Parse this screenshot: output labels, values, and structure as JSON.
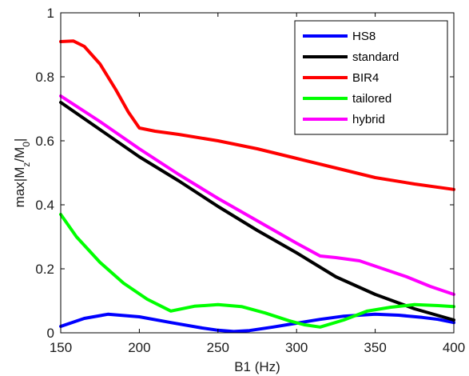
{
  "chart_data": {
    "type": "line",
    "xlabel": "B1 (Hz)",
    "ylabel": {
      "prefix": "max|M",
      "sub1": "z",
      "mid": "/M",
      "sub2": "0",
      "suffix": "|"
    },
    "xlim": [
      150,
      400
    ],
    "ylim": [
      0,
      1
    ],
    "xticks": [
      150,
      200,
      250,
      300,
      350,
      400
    ],
    "yticks": [
      0,
      0.2,
      0.4,
      0.6,
      0.8,
      1
    ],
    "ytick_labels": [
      "0",
      "0.2",
      "0.4",
      "0.6",
      "0.8",
      "1"
    ],
    "grid": false,
    "legend_position": "top-right",
    "series": [
      {
        "name": "HS8",
        "color": "#0000ff",
        "x": [
          150,
          165,
          180,
          200,
          220,
          240,
          250,
          260,
          270,
          285,
          300,
          315,
          330,
          350,
          365,
          380,
          390,
          400
        ],
        "y": [
          0.02,
          0.045,
          0.058,
          0.05,
          0.032,
          0.015,
          0.008,
          0.004,
          0.007,
          0.018,
          0.03,
          0.042,
          0.052,
          0.058,
          0.055,
          0.048,
          0.042,
          0.032
        ]
      },
      {
        "name": "standard",
        "color": "#000000",
        "x": [
          150,
          175,
          200,
          225,
          250,
          275,
          300,
          325,
          350,
          375,
          400
        ],
        "y": [
          0.72,
          0.635,
          0.55,
          0.475,
          0.395,
          0.32,
          0.25,
          0.175,
          0.12,
          0.075,
          0.04
        ]
      },
      {
        "name": "BIR4",
        "color": "#ff0000",
        "x": [
          150,
          158,
          165,
          175,
          185,
          193,
          200,
          210,
          225,
          250,
          275,
          300,
          325,
          350,
          375,
          400
        ],
        "y": [
          0.91,
          0.912,
          0.895,
          0.84,
          0.76,
          0.69,
          0.64,
          0.63,
          0.62,
          0.6,
          0.575,
          0.545,
          0.515,
          0.485,
          0.465,
          0.448
        ]
      },
      {
        "name": "tailored",
        "color": "#00ff00",
        "x": [
          150,
          160,
          175,
          190,
          205,
          220,
          235,
          250,
          265,
          280,
          295,
          305,
          315,
          330,
          345,
          360,
          375,
          390,
          400
        ],
        "y": [
          0.37,
          0.3,
          0.22,
          0.155,
          0.105,
          0.068,
          0.083,
          0.088,
          0.082,
          0.062,
          0.038,
          0.025,
          0.018,
          0.04,
          0.068,
          0.08,
          0.088,
          0.085,
          0.082
        ]
      },
      {
        "name": "hybrid",
        "color": "#ff00ff",
        "x": [
          150,
          175,
          200,
          225,
          250,
          275,
          300,
          315,
          325,
          340,
          355,
          370,
          385,
          400
        ],
        "y": [
          0.74,
          0.66,
          0.575,
          0.495,
          0.42,
          0.35,
          0.28,
          0.24,
          0.235,
          0.225,
          0.2,
          0.175,
          0.145,
          0.12
        ]
      }
    ]
  }
}
